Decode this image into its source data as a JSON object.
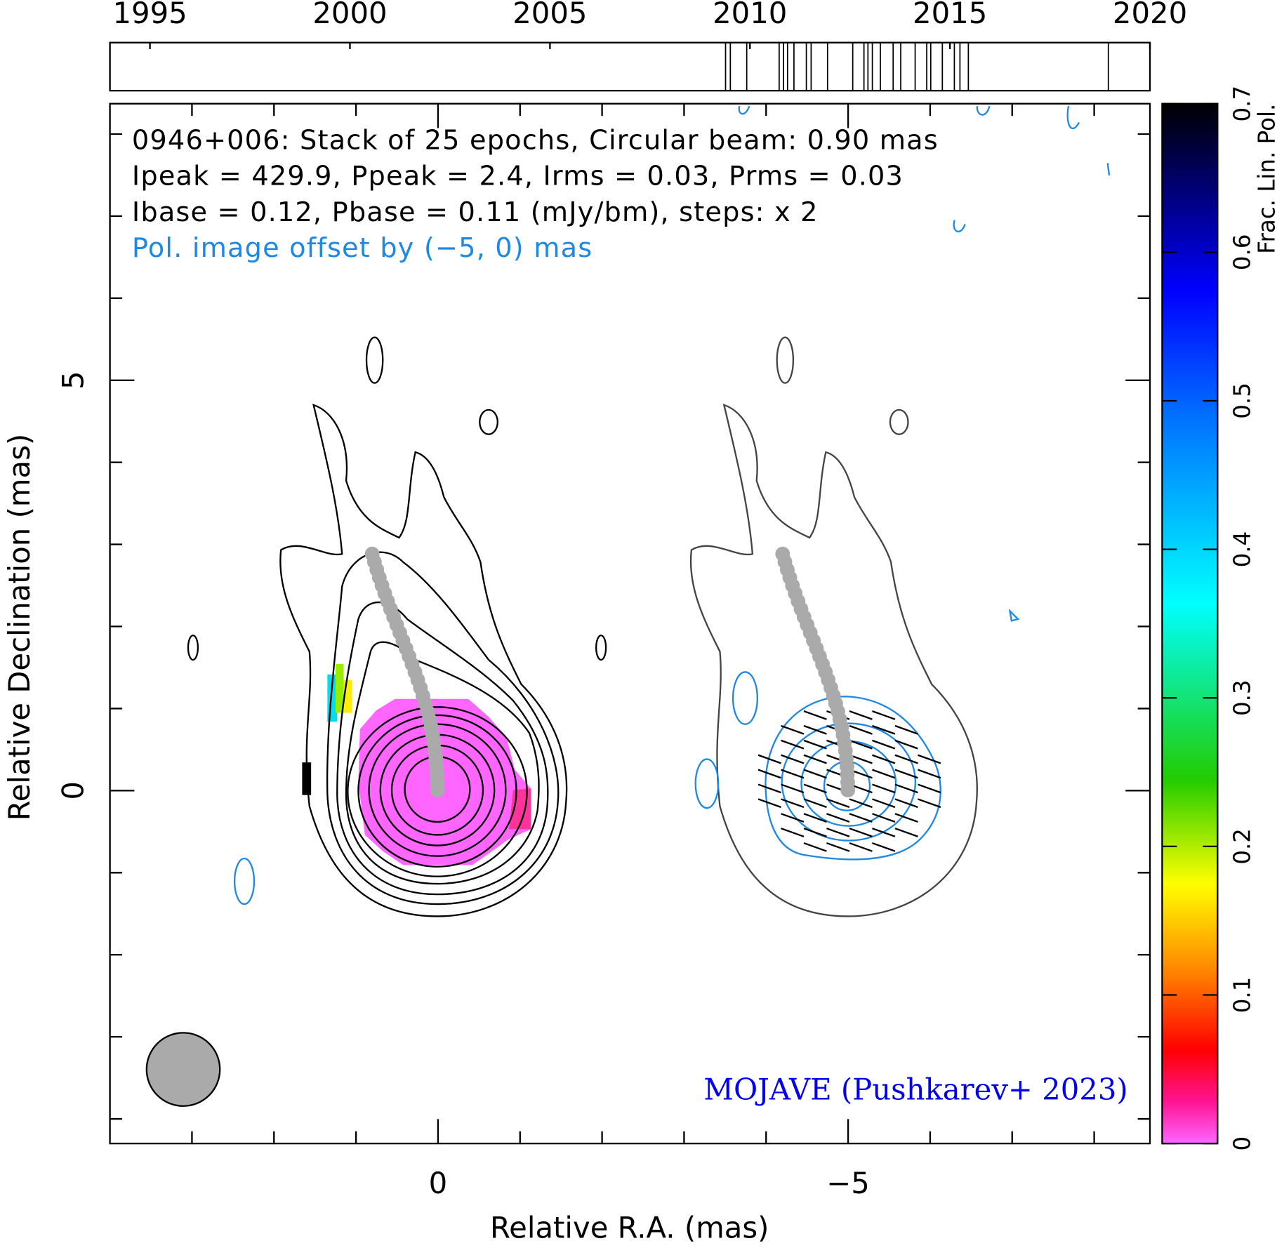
{
  "chart_data": [
    {
      "type": "timeline",
      "xlim": [
        1994,
        2020
      ],
      "xticks": [
        1995,
        2000,
        2005,
        2010,
        2015,
        2020
      ],
      "epochs": [
        2009.39,
        2009.51,
        2009.92,
        2010.73,
        2010.84,
        2010.94,
        2011.1,
        2011.41,
        2011.53,
        2011.94,
        2012.57,
        2012.85,
        2012.95,
        2013.06,
        2013.26,
        2013.58,
        2013.77,
        2014.13,
        2014.42,
        2014.52,
        2014.81,
        2015.11,
        2015.25,
        2015.46,
        2018.96
      ]
    },
    {
      "type": "map",
      "lines": [
        "0946+006: Stack of 25 epochs, Circular beam: 0.90 mas",
        "Ipeak = 429.9, Ppeak = 2.4, Irms = 0.03, Prms = 0.03",
        "Ibase = 0.12, Pbase = 0.11 (mJy/bm), steps: x 2",
        "Pol. image offset by (−5, 0) mas"
      ],
      "credit": "MOJAVE (Pushkarev+ 2023)",
      "xlabel": "Relative R.A. (mas)",
      "ylabel": "Relative Declination (mas)",
      "xlim": [
        4,
        -8.68
      ],
      "ylim": [
        -4.3,
        8.37
      ],
      "xticks": [
        0,
        {
          "value": -5,
          "label": "−5"
        }
      ],
      "yticks": [
        0,
        5
      ],
      "xminorticks": [
        3,
        2,
        1,
        -1,
        -2,
        -3,
        -4,
        -6,
        -7,
        -8
      ],
      "yminorticks": [
        -4,
        -3,
        -2,
        -1,
        1,
        2,
        3,
        4,
        6,
        7,
        8
      ]
    },
    {
      "type": "colorbar",
      "label": "Frac. Lin. Pol.",
      "ylim": [
        0,
        0.7
      ],
      "yticks": [
        0,
        0.1,
        0.2,
        0.3,
        0.4,
        0.5,
        0.6,
        0.7
      ]
    }
  ]
}
